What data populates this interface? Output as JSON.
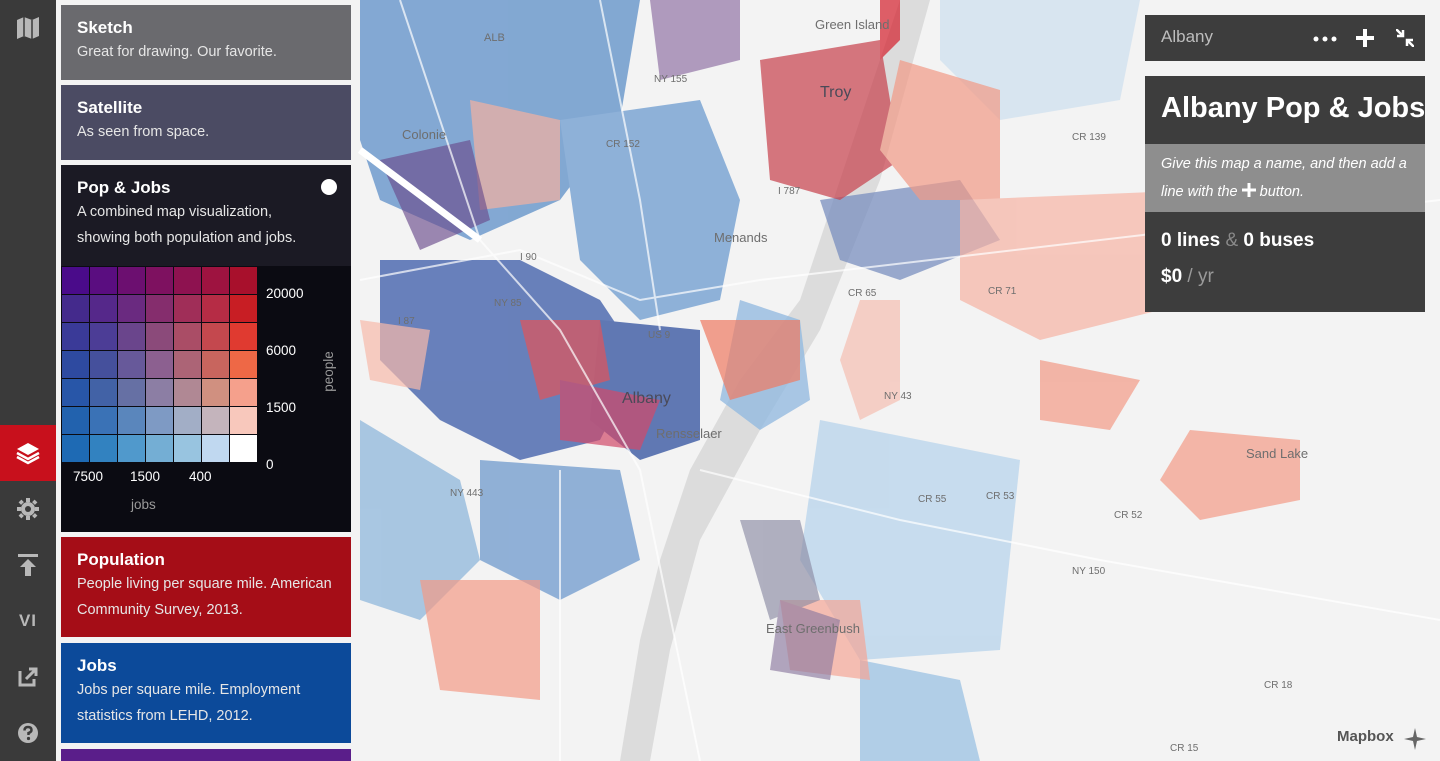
{
  "rail": {
    "items": [
      {
        "id": "map-icon"
      },
      {
        "id": "layers-icon"
      },
      {
        "id": "gear-icon"
      },
      {
        "id": "upload-icon"
      },
      {
        "id": "vi-label",
        "text": "VI"
      },
      {
        "id": "share-icon"
      },
      {
        "id": "help-icon"
      }
    ]
  },
  "layers": [
    {
      "title": "Sketch",
      "desc": "Great for drawing. Our favorite.",
      "color": "#6a6a6e"
    },
    {
      "title": "Satellite",
      "desc": "As seen from space.",
      "color": "#4b4b63"
    },
    {
      "title": "Pop & Jobs",
      "desc": "A combined map visualization, showing both population and jobs.",
      "color": "#1b1a24"
    },
    {
      "title": "Population",
      "desc": "People living per square mile. American Community Survey, 2013.",
      "color": "#a50d17"
    },
    {
      "title": "Jobs",
      "desc": "Jobs per square mile. Employment statistics from LEHD, 2012.",
      "color": "#0c4a9a"
    }
  ],
  "legend": {
    "people_ticks": [
      "20000",
      "6000",
      "1500",
      "0"
    ],
    "people_label": "people",
    "jobs_ticks": [
      "7500",
      "1500",
      "400"
    ],
    "jobs_label": "jobs",
    "grid_colors": [
      [
        "#4a0b8a",
        "#5a0d80",
        "#6c0f70",
        "#7e1160",
        "#8e1250",
        "#9e1340",
        "#a8102c"
      ],
      [
        "#442a8c",
        "#55288a",
        "#6a2a80",
        "#852d6d",
        "#a02e58",
        "#b62c45",
        "#c81e24"
      ],
      [
        "#3a3a98",
        "#4c3d96",
        "#6a458c",
        "#8b4a7a",
        "#aa4d66",
        "#c4484e",
        "#e03a30"
      ],
      [
        "#2e4aa0",
        "#45509c",
        "#67599a",
        "#8c6090",
        "#ac6476",
        "#c8655e",
        "#ee6846"
      ],
      [
        "#2856a8",
        "#4262a6",
        "#6670a4",
        "#8c7ea4",
        "#b08894",
        "#d09080",
        "#f5a08c"
      ],
      [
        "#2262ae",
        "#3a72b6",
        "#5a86bc",
        "#7e9ac4",
        "#a2aec6",
        "#c4b4bc",
        "#f8c8bc"
      ],
      [
        "#1e6ab4",
        "#3282c0",
        "#5099cc",
        "#74aed4",
        "#98c4e0",
        "#c0d8f0",
        "#ffffff"
      ]
    ]
  },
  "infobox": {
    "city": "Albany",
    "title": "Albany Pop & Jobs",
    "hint_pre": "Give this map a name, and then add a line with the",
    "hint_post": "button.",
    "lines_count": "0",
    "lines_label": "lines",
    "amp": "&",
    "buses_count": "0",
    "buses_label": "buses",
    "cost": "$0",
    "cost_unit": "/ yr"
  },
  "map_labels": [
    {
      "t": "Green Island"
    },
    {
      "t": "Troy"
    },
    {
      "t": "Colonie"
    },
    {
      "t": "Menands"
    },
    {
      "t": "Albany"
    },
    {
      "t": "Rensselaer"
    },
    {
      "t": "East Greenbush"
    },
    {
      "t": "Sand Lake"
    },
    {
      "t": "ALB"
    },
    {
      "t": "NY 155"
    },
    {
      "t": "CR 152"
    },
    {
      "t": "CR 139"
    },
    {
      "t": "CR 65"
    },
    {
      "t": "CR 71"
    },
    {
      "t": "NY 43"
    },
    {
      "t": "NY 443"
    },
    {
      "t": "CR 55"
    },
    {
      "t": "CR 53"
    },
    {
      "t": "CR 52"
    },
    {
      "t": "NY 150"
    },
    {
      "t": "CR 18"
    },
    {
      "t": "CR 15"
    },
    {
      "t": "I 90"
    },
    {
      "t": "I 87"
    },
    {
      "t": "US 9"
    },
    {
      "t": "NY 85"
    },
    {
      "t": "I 787"
    }
  ],
  "attribution": "Mapbox"
}
